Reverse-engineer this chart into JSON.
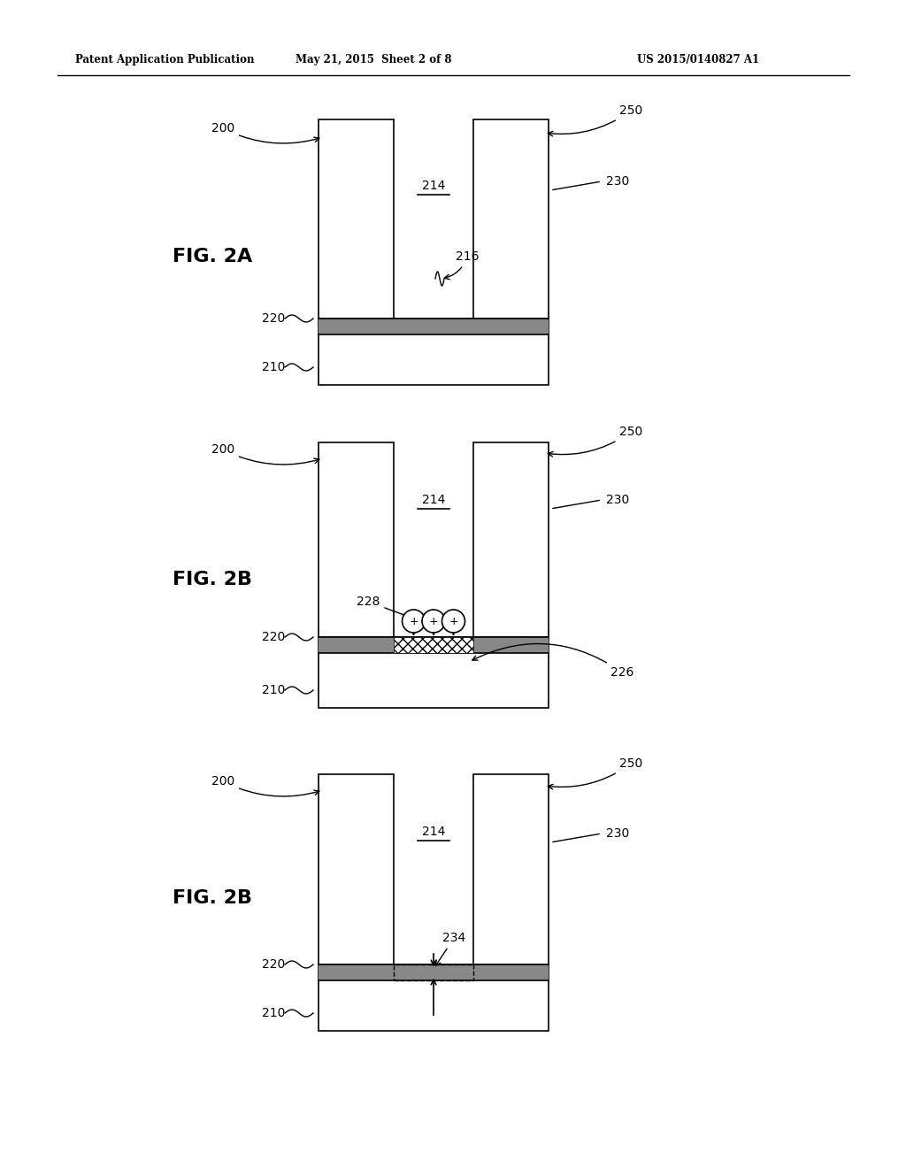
{
  "bg_color": "#ffffff",
  "line_color": "#000000",
  "header_left": "Patent Application Publication",
  "header_mid": "May 21, 2015  Sheet 2 of 8",
  "header_right": "US 2015/0140827 A1",
  "fig1_label": "FIG. 2A",
  "fig2_label": "FIG. 2B",
  "fig3_label": "FIG. 2B",
  "lw": 1.2,
  "barrier_color": "#888888",
  "hatch_color": "#555555"
}
